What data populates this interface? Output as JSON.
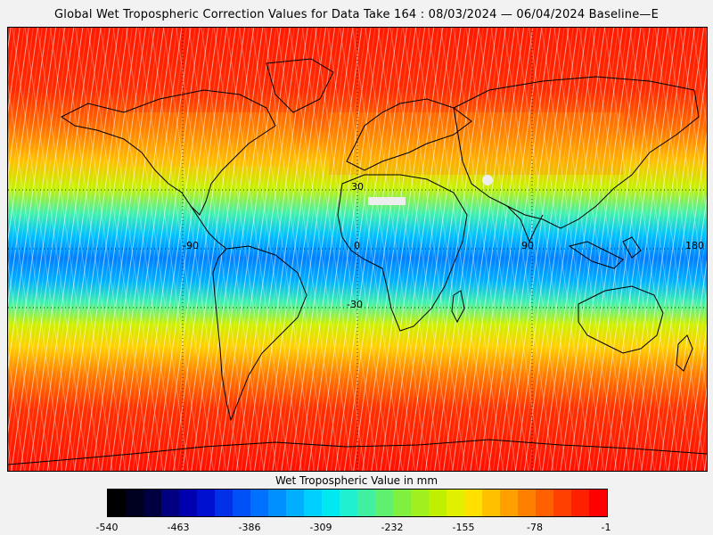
{
  "title": "Global Wet Tropospheric Correction Values for Data Take 164 : 08/03/2024 — 06/04/2024 Baseline—E",
  "map": {
    "longitude_labels": [
      "-90",
      "0",
      "90",
      "180"
    ],
    "latitude_labels": [
      "30",
      "-30"
    ]
  },
  "legend": {
    "title": "Wet Tropospheric Value in mm",
    "tick_labels": [
      "-540",
      "-463",
      "-386",
      "-309",
      "-232",
      "-155",
      "-78",
      "-1"
    ],
    "colors": [
      "#000000",
      "#000020",
      "#000040",
      "#000080",
      "#0000b0",
      "#0010d0",
      "#0030e8",
      "#0050f8",
      "#0070ff",
      "#0090ff",
      "#00b0ff",
      "#00d0ff",
      "#00e8f0",
      "#20f0d0",
      "#40f0a0",
      "#60f070",
      "#80f040",
      "#a0f020",
      "#c0f000",
      "#e0f000",
      "#ffe000",
      "#ffc000",
      "#ffa000",
      "#ff8000",
      "#ff6000",
      "#ff4000",
      "#ff2000",
      "#ff0000"
    ]
  },
  "chart_data": {
    "type": "heatmap",
    "title": "Global Wet Tropospheric Correction Values for Data Take 164 : 08/03/2024 — 06/04/2024 Baseline—E",
    "colorbar_label": "Wet Tropospheric Value in mm",
    "colorbar_range": [
      -540,
      -1
    ],
    "colorbar_ticks": [
      -540,
      -463,
      -386,
      -309,
      -232,
      -155,
      -78,
      -1
    ],
    "latitude_bands": [
      {
        "lat_min": 60,
        "lat_max": 90,
        "value": -30
      },
      {
        "lat_min": 40,
        "lat_max": 60,
        "value": -60
      },
      {
        "lat_min": 25,
        "lat_max": 40,
        "value": -110
      },
      {
        "lat_min": 15,
        "lat_max": 25,
        "value": -180
      },
      {
        "lat_min": 8,
        "lat_max": 15,
        "value": -250
      },
      {
        "lat_min": -8,
        "lat_max": 8,
        "value": -320
      },
      {
        "lat_min": -15,
        "lat_max": -8,
        "value": -280
      },
      {
        "lat_min": -25,
        "lat_max": -15,
        "value": -200
      },
      {
        "lat_min": -40,
        "lat_max": -25,
        "value": -120
      },
      {
        "lat_min": -60,
        "lat_max": -40,
        "value": -60
      },
      {
        "lat_min": -90,
        "lat_max": -60,
        "value": -20
      }
    ]
  }
}
